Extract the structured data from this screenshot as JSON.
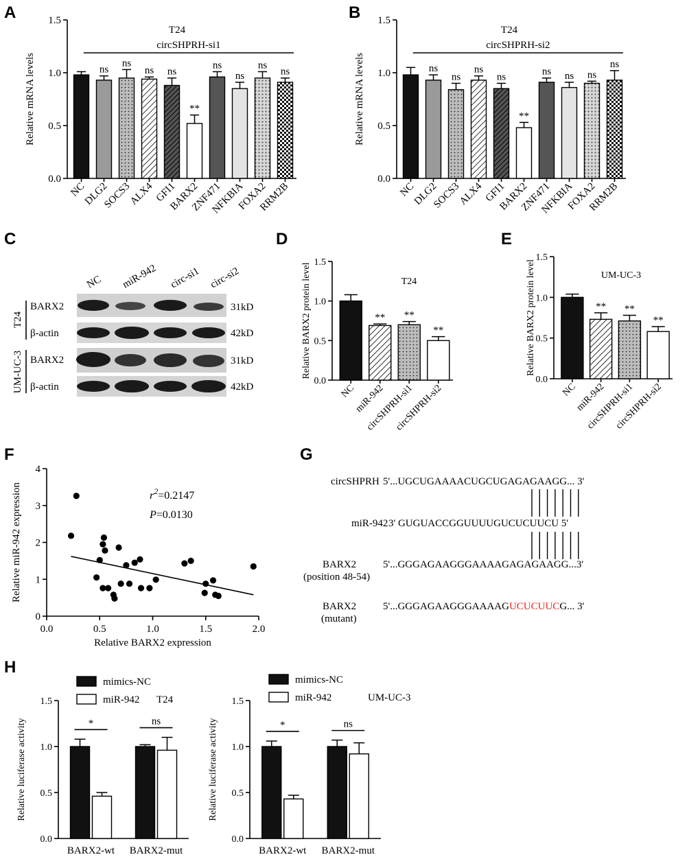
{
  "panel_labels": [
    "A",
    "B",
    "C",
    "D",
    "E",
    "F",
    "G",
    "H"
  ],
  "chart_data": [
    {
      "id": "A",
      "type": "bar",
      "title": "T24",
      "group_label": "circSHPRH-si1",
      "ylabel": "Relative mRNA levels",
      "ylim": [
        0,
        1.5
      ],
      "yticks": [
        "0.0",
        "0.5",
        "1.0",
        "1.5"
      ],
      "categories": [
        "NC",
        "DLG2",
        "SOCS3",
        "ALX4",
        "GFI1",
        "BARX2",
        "ZNF471",
        "NFKBIA",
        "FOXA2",
        "RRM2B"
      ],
      "values": [
        0.98,
        0.93,
        0.95,
        0.94,
        0.88,
        0.52,
        0.96,
        0.85,
        0.95,
        0.91
      ],
      "errors": [
        0.03,
        0.04,
        0.08,
        0.02,
        0.07,
        0.08,
        0.05,
        0.06,
        0.06,
        0.04
      ],
      "annotations": [
        "",
        "ns",
        "ns",
        "ns",
        "ns",
        "**",
        "ns",
        "ns",
        "ns",
        "ns"
      ],
      "fills": [
        "black",
        "gray",
        "dots",
        "hatch",
        "hatchd",
        "white",
        "dark",
        "light",
        "cross",
        "check"
      ]
    },
    {
      "id": "B",
      "type": "bar",
      "title": "T24",
      "group_label": "circSHPRH-si2",
      "ylabel": "Relative mRNA levels",
      "ylim": [
        0,
        1.5
      ],
      "yticks": [
        "0.0",
        "0.5",
        "1.0",
        "1.5"
      ],
      "categories": [
        "NC",
        "DLG2",
        "SOCS3",
        "ALX4",
        "GFI1",
        "BARX2",
        "ZNF471",
        "NFKBIA",
        "FOXA2",
        "RRM2B"
      ],
      "values": [
        0.98,
        0.93,
        0.84,
        0.93,
        0.85,
        0.48,
        0.91,
        0.86,
        0.9,
        0.93
      ],
      "errors": [
        0.07,
        0.05,
        0.06,
        0.04,
        0.05,
        0.05,
        0.04,
        0.05,
        0.02,
        0.09
      ],
      "annotations": [
        "",
        "ns",
        "ns",
        "ns",
        "ns",
        "**",
        "ns",
        "ns",
        "ns",
        "ns"
      ],
      "fills": [
        "black",
        "gray",
        "dots",
        "hatch",
        "hatchd",
        "white",
        "dark",
        "light",
        "cross",
        "check"
      ]
    },
    {
      "id": "D",
      "type": "bar",
      "title": "T24",
      "ylabel": "Relative BARX2 protein level",
      "ylim": [
        0,
        1.5
      ],
      "yticks": [
        "0.0",
        "0.5",
        "1.0",
        "1.5"
      ],
      "categories": [
        "NC",
        "miR-942",
        "circSHPRH-si1",
        "circSHPRH-si2"
      ],
      "values": [
        1.0,
        0.69,
        0.7,
        0.5
      ],
      "errors": [
        0.08,
        0.02,
        0.04,
        0.05
      ],
      "annotations": [
        "",
        "**",
        "**",
        "**"
      ],
      "fills": [
        "black",
        "hatch",
        "dots",
        "white"
      ]
    },
    {
      "id": "E",
      "type": "bar",
      "title": "UM-UC-3",
      "ylabel": "Relative BARX2 protein level",
      "ylim": [
        0,
        1.5
      ],
      "yticks": [
        "0.0",
        "0.5",
        "1.0",
        "1.5"
      ],
      "categories": [
        "NC",
        "miR-942",
        "circSHPRH-si1",
        "circSHPRH-si2"
      ],
      "values": [
        1.0,
        0.73,
        0.71,
        0.58
      ],
      "errors": [
        0.04,
        0.08,
        0.07,
        0.06
      ],
      "annotations": [
        "",
        "**",
        "**",
        "**"
      ],
      "fills": [
        "black",
        "hatch",
        "dots",
        "white"
      ]
    },
    {
      "id": "F",
      "type": "scatter",
      "xlabel": "Relative BARX2 expression",
      "ylabel": "Relative miR-942 expression",
      "xlim": [
        0,
        2.0
      ],
      "ylim": [
        0,
        4
      ],
      "xticks": [
        "0.0",
        "0.5",
        "1.0",
        "1.5",
        "2.0"
      ],
      "yticks": [
        "0",
        "1",
        "2",
        "3",
        "4"
      ],
      "r2_prefix": "r",
      "r2_sup": "2",
      "r2_value": "=0.2147",
      "p_prefix": "P",
      "p_value": "=0.0130",
      "points": [
        [
          0.23,
          2.18
        ],
        [
          0.28,
          3.26
        ],
        [
          0.47,
          1.05
        ],
        [
          0.5,
          1.52
        ],
        [
          0.53,
          1.95
        ],
        [
          0.54,
          2.13
        ],
        [
          0.53,
          0.76
        ],
        [
          0.55,
          1.78
        ],
        [
          0.58,
          0.76
        ],
        [
          0.63,
          0.58
        ],
        [
          0.64,
          0.48
        ],
        [
          0.68,
          1.86
        ],
        [
          0.7,
          0.88
        ],
        [
          0.75,
          1.38
        ],
        [
          0.78,
          0.88
        ],
        [
          0.83,
          1.45
        ],
        [
          0.88,
          1.54
        ],
        [
          0.89,
          0.76
        ],
        [
          0.97,
          0.76
        ],
        [
          1.03,
          0.99
        ],
        [
          1.3,
          1.43
        ],
        [
          1.36,
          1.5
        ],
        [
          1.49,
          0.63
        ],
        [
          1.5,
          0.88
        ],
        [
          1.57,
          0.97
        ],
        [
          1.59,
          0.58
        ],
        [
          1.62,
          0.55
        ],
        [
          1.95,
          1.35
        ]
      ],
      "fit": [
        [
          0.23,
          1.62
        ],
        [
          1.95,
          0.58
        ]
      ]
    },
    {
      "id": "H1",
      "type": "bar",
      "title": "T24",
      "legend": [
        "mimics-NC",
        "miR-942"
      ],
      "ylabel": "Relative luciferase activity",
      "ylim": [
        0,
        1.5
      ],
      "yticks": [
        "0.0",
        "0.5",
        "1.0",
        "1.5"
      ],
      "categories": [
        "BARX2-wt",
        "BARX2-mut"
      ],
      "series": [
        {
          "name": "mimics-NC",
          "values": [
            1.0,
            1.0
          ],
          "errors": [
            0.08,
            0.02
          ]
        },
        {
          "name": "miR-942",
          "values": [
            0.46,
            0.96
          ],
          "errors": [
            0.04,
            0.14
          ]
        }
      ],
      "annotations": [
        "*",
        "ns"
      ]
    },
    {
      "id": "H2",
      "type": "bar",
      "title": "UM-UC-3",
      "legend": [
        "mimics-NC",
        "miR-942"
      ],
      "ylabel": "Relative luciferase activity",
      "ylim": [
        0,
        1.5
      ],
      "yticks": [
        "0.0",
        "0.5",
        "1.0",
        "1.5"
      ],
      "categories": [
        "BARX2-wt",
        "BARX2-mut"
      ],
      "series": [
        {
          "name": "mimics-NC",
          "values": [
            1.0,
            1.0
          ],
          "errors": [
            0.06,
            0.07
          ]
        },
        {
          "name": "miR-942",
          "values": [
            0.43,
            0.92
          ],
          "errors": [
            0.04,
            0.12
          ]
        }
      ],
      "annotations": [
        "*",
        "ns"
      ]
    }
  ],
  "western_blot": {
    "lanes": [
      "NC",
      "miR-942",
      "circ-si1",
      "circ-si2"
    ],
    "cell_lines": [
      "T24",
      "UM-UC-3"
    ],
    "proteins": [
      "BARX2",
      "β-actin",
      "BARX2",
      "β-actin"
    ],
    "sizes": [
      "31kD",
      "42kD",
      "31kD",
      "42kD"
    ]
  },
  "sequence_panel": {
    "rows": [
      {
        "label": "circSHPRH",
        "seq": "5'...UGCUGAAAACUGCUGAGAGAAGG... 3'"
      },
      {
        "label": "miR-942",
        "seq": "3'  GUGUACCGGUUUUGUCUCUUCU 5'"
      },
      {
        "label": "BARX2",
        "sublabel": "(position 48-54)",
        "seq": "5'...GGGAGAAGGGAAAAGAGAGAAGG...3'"
      },
      {
        "label": "BARX2",
        "sublabel": "(mutant)",
        "seq_pre": "5'...GGGAGAAGGGAAAAG",
        "seq_mut": "UCUCUUC",
        "seq_post": "G... 3'"
      }
    ],
    "mutant_color": "#e8261c"
  }
}
